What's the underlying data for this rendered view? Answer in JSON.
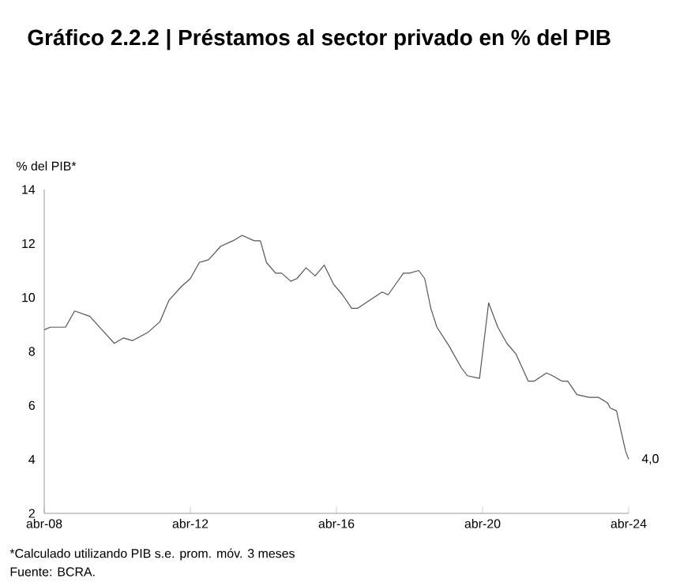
{
  "chart_data": {
    "type": "line",
    "title": "Gráfico 2.2.2 | Préstamos al sector privado en % del PIB",
    "ylabel": "% del PIB*",
    "annotations": [
      "*Calculado utilizando PIB s.e. prom. móv. 3 meses",
      "Fuente: BCRA."
    ],
    "x": [
      "2008-04",
      "2008-06",
      "2008-11",
      "2009-02",
      "2009-07",
      "2009-11",
      "2010-03",
      "2010-06",
      "2010-09",
      "2011-02",
      "2011-06",
      "2011-09",
      "2012-01",
      "2012-04",
      "2012-07",
      "2012-10",
      "2013-02",
      "2013-06",
      "2013-09",
      "2014-01",
      "2014-03",
      "2014-05",
      "2014-08",
      "2014-10",
      "2015-01",
      "2015-03",
      "2015-06",
      "2015-09",
      "2015-12",
      "2016-03",
      "2016-06",
      "2016-09",
      "2016-11",
      "2017-03",
      "2017-07",
      "2017-09",
      "2018-02",
      "2018-04",
      "2018-07",
      "2018-09",
      "2018-11",
      "2019-01",
      "2019-05",
      "2019-09",
      "2019-11",
      "2020-03",
      "2020-06",
      "2020-09",
      "2020-12",
      "2021-03",
      "2021-07",
      "2021-09",
      "2022-01",
      "2022-03",
      "2022-06",
      "2022-08",
      "2022-11",
      "2023-03",
      "2023-06",
      "2023-09",
      "2023-10",
      "2023-12",
      "2024-02",
      "2024-03",
      "2024-04"
    ],
    "series": [
      {
        "color": "#555555",
        "values": [
          8.8,
          8.9,
          8.9,
          9.5,
          9.3,
          8.8,
          8.3,
          8.5,
          8.4,
          8.7,
          9.1,
          9.9,
          10.4,
          10.7,
          11.3,
          11.4,
          11.9,
          12.1,
          12.3,
          12.1,
          12.1,
          11.3,
          10.9,
          10.9,
          10.6,
          10.7,
          11.1,
          10.8,
          11.2,
          10.5,
          10.1,
          9.6,
          9.6,
          9.9,
          10.2,
          10.1,
          10.9,
          10.9,
          11.0,
          10.7,
          9.6,
          8.9,
          8.2,
          7.4,
          7.1,
          7.0,
          9.8,
          8.9,
          8.3,
          7.9,
          6.9,
          6.9,
          7.2,
          7.1,
          6.9,
          6.9,
          6.4,
          6.3,
          6.3,
          6.1,
          5.9,
          5.8,
          4.8,
          4.3,
          4.0
        ],
        "value_labels": [
          null,
          null,
          null,
          null,
          null,
          null,
          null,
          null,
          null,
          null,
          null,
          null,
          null,
          null,
          null,
          null,
          null,
          null,
          null,
          null,
          null,
          null,
          null,
          null,
          null,
          null,
          null,
          null,
          null,
          null,
          null,
          null,
          null,
          null,
          null,
          null,
          null,
          null,
          null,
          null,
          null,
          null,
          null,
          null,
          null,
          null,
          null,
          null,
          null,
          null,
          null,
          null,
          null,
          null,
          null,
          null,
          null,
          null,
          null,
          null,
          null,
          null,
          null,
          null,
          "4,0"
        ]
      }
    ],
    "xlim": [
      "2008-04",
      "2024-04"
    ],
    "xticks": [
      {
        "value": "2008-04",
        "label": "abr-08"
      },
      {
        "value": "2012-04",
        "label": "abr-12"
      },
      {
        "value": "2016-04",
        "label": "abr-16"
      },
      {
        "value": "2020-04",
        "label": "abr-20"
      },
      {
        "value": "2024-04",
        "label": "abr-24"
      }
    ],
    "ylim": [
      2,
      14
    ],
    "yticks": [
      2,
      4,
      6,
      8,
      10,
      12,
      14
    ],
    "grid": false,
    "marker": "none",
    "line_style": "solid"
  }
}
